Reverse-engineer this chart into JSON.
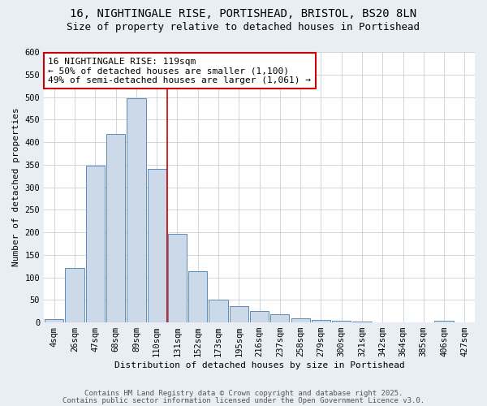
{
  "title_line1": "16, NIGHTINGALE RISE, PORTISHEAD, BRISTOL, BS20 8LN",
  "title_line2": "Size of property relative to detached houses in Portishead",
  "xlabel": "Distribution of detached houses by size in Portishead",
  "ylabel": "Number of detached properties",
  "bar_labels": [
    "4sqm",
    "26sqm",
    "47sqm",
    "68sqm",
    "89sqm",
    "110sqm",
    "131sqm",
    "152sqm",
    "173sqm",
    "195sqm",
    "216sqm",
    "237sqm",
    "258sqm",
    "279sqm",
    "300sqm",
    "321sqm",
    "342sqm",
    "364sqm",
    "385sqm",
    "406sqm",
    "427sqm"
  ],
  "bar_values": [
    7,
    120,
    348,
    418,
    498,
    340,
    197,
    114,
    50,
    36,
    25,
    19,
    10,
    6,
    4,
    2,
    1,
    0,
    0,
    3,
    0
  ],
  "bar_color": "#ccd9e8",
  "bar_edge_color": "#5b8db8",
  "property_line_x": 5.5,
  "property_line_color": "#cc0000",
  "annotation_text": "16 NIGHTINGALE RISE: 119sqm\n← 50% of detached houses are smaller (1,100)\n49% of semi-detached houses are larger (1,061) →",
  "annotation_box_facecolor": "white",
  "annotation_box_edgecolor": "#cc0000",
  "ylim": [
    0,
    600
  ],
  "yticks": [
    0,
    50,
    100,
    150,
    200,
    250,
    300,
    350,
    400,
    450,
    500,
    550,
    600
  ],
  "footnote_line1": "Contains HM Land Registry data © Crown copyright and database right 2025.",
  "footnote_line2": "Contains public sector information licensed under the Open Government Licence v3.0.",
  "bg_color": "#e8eef4",
  "plot_bg_color": "#ffffff",
  "grid_color": "#c5cfd8",
  "title1_fontsize": 10,
  "title2_fontsize": 9,
  "axis_label_fontsize": 8,
  "tick_fontsize": 7.5,
  "annot_fontsize": 8,
  "footnote_fontsize": 6.5,
  "footnote_color": "#555555"
}
